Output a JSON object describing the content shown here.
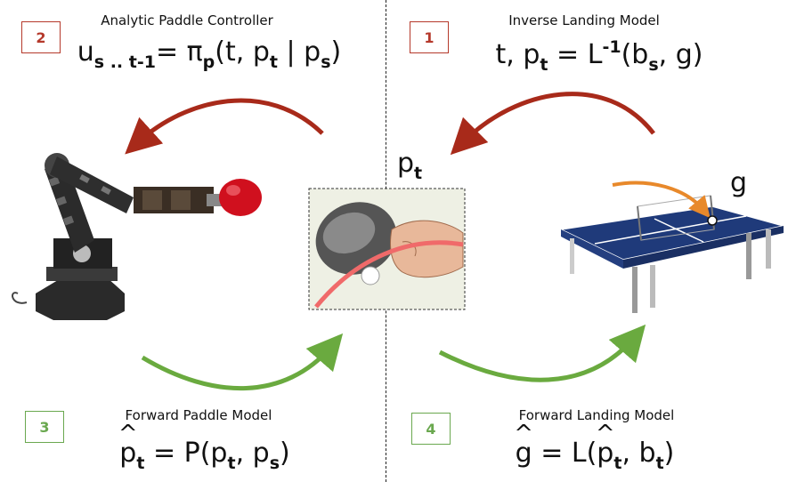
{
  "steps": [
    {
      "number": "1",
      "caption": "Inverse Landing Model"
    },
    {
      "number": "2",
      "caption": "Analytic Paddle Controller"
    },
    {
      "number": "3",
      "caption": "Forward Paddle Model"
    },
    {
      "number": "4",
      "caption": "Forward Landing Model"
    }
  ],
  "labels": {
    "pt_main": "p",
    "pt_sub": "t",
    "goal": "g"
  },
  "colors": {
    "red_arrow": "#a82a1a",
    "green_arrow": "#6aaa3f",
    "red_box": "#b5392b",
    "green_box": "#6aa84f",
    "ball_arc": "#e8892b",
    "table_top": "#1f3a7a"
  }
}
